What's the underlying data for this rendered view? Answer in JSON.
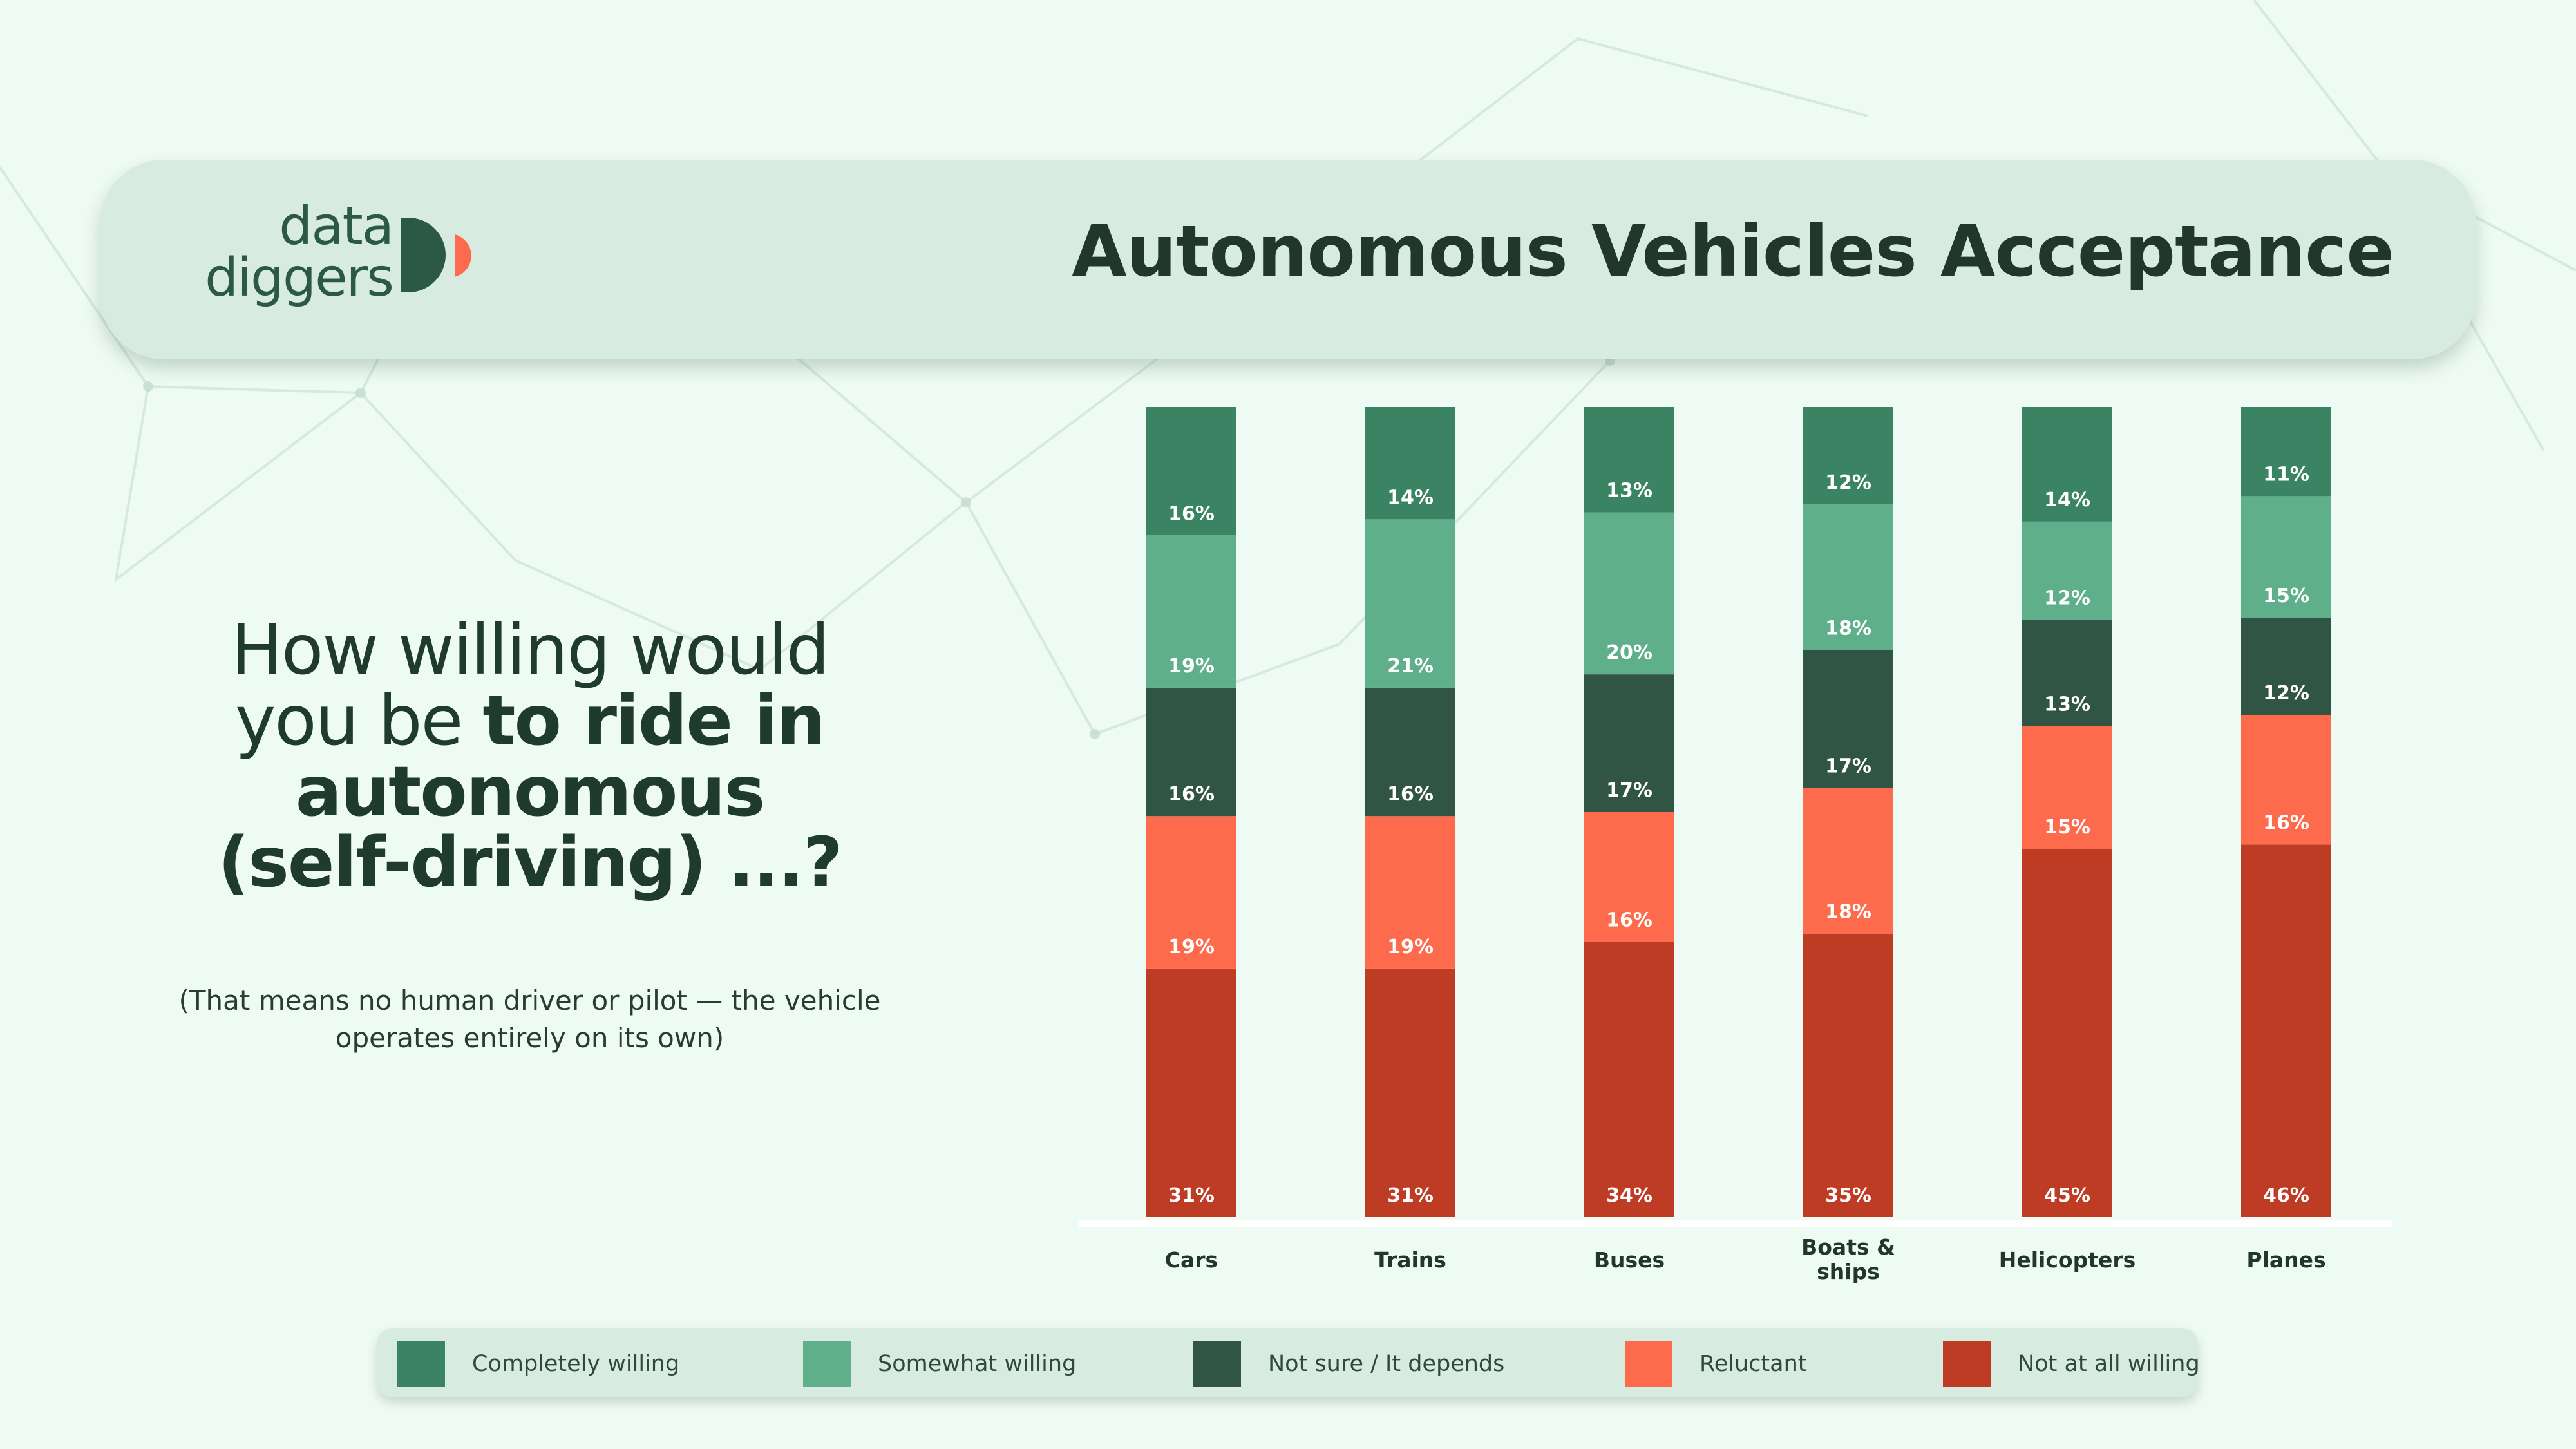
{
  "header": {
    "logo_line1": "data",
    "logo_line2": "diggers",
    "title": "Autonomous Vehicles Acceptance"
  },
  "question": {
    "line1": "How willing would",
    "line2_plain": "you be ",
    "line2_bold": "to ride in",
    "line3_bold": "autonomous",
    "line4_bold": "(self-driving) ...?",
    "note_line1": "(That means no human driver or pilot — the vehicle",
    "note_line2": "operates entirely on its own)"
  },
  "colors": {
    "completely_willing": "#3a8463",
    "somewhat_willing": "#5faf8a",
    "not_sure": "#305545",
    "reluctant": "#fe6a4c",
    "not_at_all": "#be3b24",
    "background": "#eefaf4",
    "panel": "#d8ebe1",
    "text": "#21372d"
  },
  "chart_data": {
    "type": "bar",
    "stacked": true,
    "orientation": "vertical",
    "categories": [
      "Cars",
      "Trains",
      "Buses",
      "Boats & ships",
      "Helicopters",
      "Planes"
    ],
    "category_labels": [
      [
        "Cars"
      ],
      [
        "Trains"
      ],
      [
        "Buses"
      ],
      [
        "Boats &",
        "ships"
      ],
      [
        "Helicopters"
      ],
      [
        "Planes"
      ]
    ],
    "series": [
      {
        "name": "Not at all willing",
        "color": "#be3b24",
        "values": [
          31,
          31,
          34,
          35,
          45,
          46
        ]
      },
      {
        "name": "Reluctant",
        "color": "#fe6a4c",
        "values": [
          19,
          19,
          16,
          18,
          15,
          16
        ]
      },
      {
        "name": "Not sure / It depends",
        "color": "#305545",
        "values": [
          16,
          16,
          17,
          17,
          13,
          12
        ]
      },
      {
        "name": "Somewhat willing",
        "color": "#5faf8a",
        "values": [
          19,
          21,
          20,
          18,
          12,
          15
        ]
      },
      {
        "name": "Completely willing",
        "color": "#3a8463",
        "values": [
          16,
          14,
          13,
          12,
          14,
          11
        ]
      }
    ],
    "value_suffix": "%",
    "legend": {
      "position": "bottom",
      "order": [
        "Completely willing",
        "Somewhat willing",
        "Not sure / It depends",
        "Reluctant",
        "Not at all willing"
      ]
    },
    "grid": false,
    "axis_ticks": false
  }
}
